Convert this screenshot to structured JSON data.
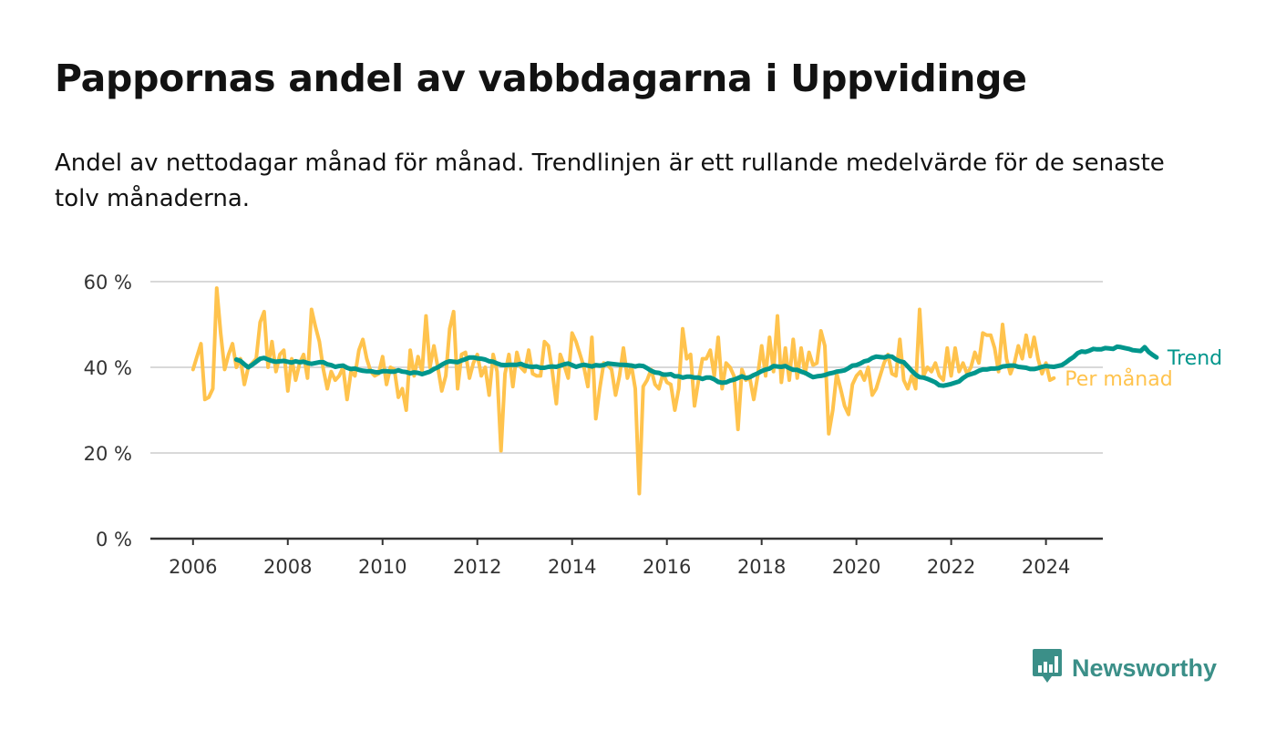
{
  "header": {
    "title": "Pappornas andel av vabbdagarna i Uppvidinge",
    "subtitle": "Andel av nettodagar månad för månad. Trendlinjen är ett rullande medelvärde för de senaste tolv månaderna."
  },
  "branding": {
    "name": "Newsworthy",
    "icon": "newsworthy-logo-icon",
    "color": "#3b8f88"
  },
  "chart_data": {
    "type": "line",
    "title": "Pappornas andel av vabbdagarna i Uppvidinge",
    "xlabel": "",
    "ylabel": "",
    "x_ticks": [
      "2006",
      "2008",
      "2010",
      "2012",
      "2014",
      "2016",
      "2018",
      "2020",
      "2022",
      "2024"
    ],
    "y_ticks": [
      "0 %",
      "20 %",
      "40 %",
      "60 %"
    ],
    "xlim": [
      2005.1,
      2025.2
    ],
    "ylim": [
      0,
      60
    ],
    "grid": "horizontal",
    "legend": "direct labels at right end of lines",
    "series": [
      {
        "name": "Per månad",
        "color": "#ffc34d",
        "start": "2006-01",
        "frequency": "monthly",
        "values": [
          39.5,
          42.5,
          45.5,
          32.5,
          33,
          35,
          58.5,
          48,
          39.5,
          43,
          45.5,
          40,
          42,
          36,
          40,
          41,
          42,
          50.5,
          53,
          40,
          46,
          39,
          43,
          44,
          34.5,
          42,
          37,
          41,
          43,
          37.5,
          53.5,
          49.5,
          46,
          39.5,
          35,
          39,
          37,
          38,
          40,
          32.5,
          39,
          38,
          44,
          46.5,
          42,
          39,
          38,
          38.5,
          42.5,
          36,
          40,
          39.5,
          33,
          35,
          30,
          44,
          38,
          42.5,
          39,
          52,
          40,
          45,
          40,
          34.5,
          38,
          49,
          53,
          35,
          43,
          43.5,
          37.5,
          41,
          43,
          38,
          40,
          33.5,
          43,
          39,
          20.5,
          38.5,
          43,
          35.5,
          43.5,
          40,
          39,
          44,
          38.5,
          38,
          38,
          46,
          45,
          39,
          31.5,
          43,
          40.5,
          37.5,
          48,
          46,
          43,
          40,
          35.5,
          47,
          28,
          35,
          41,
          40.5,
          39.5,
          33.5,
          38,
          44.5,
          37.5,
          40.5,
          35,
          10.5,
          35.5,
          37,
          39.5,
          36,
          35,
          38.5,
          36.5,
          36,
          30,
          35,
          49,
          42,
          43,
          31,
          37,
          42,
          42,
          44,
          38,
          47,
          35,
          41,
          40,
          38,
          25.5,
          39.5,
          37,
          37.5,
          32.5,
          38,
          45,
          38,
          47,
          39,
          52,
          36.5,
          44.5,
          37,
          46.5,
          37.5,
          44.5,
          38.5,
          43.5,
          40.5,
          41,
          48.5,
          45,
          24.5,
          30,
          38.5,
          35,
          31,
          29,
          36,
          38,
          39,
          37,
          40,
          33.5,
          35,
          38,
          41,
          43,
          38.5,
          38,
          46.5,
          37,
          35,
          38,
          35,
          53.5,
          38,
          40,
          39,
          41,
          38,
          37,
          44.5,
          38,
          44.5,
          39,
          41,
          38.5,
          40,
          43.5,
          41,
          48,
          47.5,
          47.5,
          44.5,
          39,
          50,
          42,
          38.5,
          41,
          45,
          42,
          47.5,
          42.5,
          47,
          42,
          38.5,
          41,
          37,
          37.5
        ]
      },
      {
        "name": "Trend",
        "color": "#00968c",
        "start": "2006-12",
        "frequency": "monthly",
        "values": [
          41.8,
          41.5,
          40.7,
          40,
          40.6,
          41.3,
          42,
          42.2,
          41.8,
          41.5,
          41.3,
          41.4,
          41.5,
          41.3,
          41.1,
          41.4,
          41.2,
          41.3,
          41,
          40.8,
          41,
          41.2,
          41.2,
          40.7,
          40.5,
          40.1,
          40.3,
          40.4,
          39.9,
          39.6,
          39.7,
          39.4,
          39.2,
          39.1,
          39.1,
          38.9,
          38.8,
          39.1,
          39.1,
          39,
          39,
          39.3,
          39,
          38.9,
          38.6,
          38.8,
          38.7,
          38.4,
          38.7,
          39,
          39.6,
          40,
          40.6,
          41.1,
          41.4,
          41.3,
          41.2,
          41.6,
          41.9,
          42.3,
          42.3,
          42.1,
          42,
          41.8,
          41.4,
          41.3,
          40.9,
          40.6,
          40.5,
          40.6,
          40.6,
          40.6,
          40.8,
          40.4,
          40.2,
          40.1,
          40.2,
          39.9,
          39.9,
          40.1,
          40.2,
          40.1,
          40.4,
          40.7,
          40.9,
          40.5,
          40.1,
          40.4,
          40.6,
          40.4,
          40.2,
          40.5,
          40.4,
          40.5,
          40.9,
          40.8,
          40.7,
          40.6,
          40.6,
          40.5,
          40.4,
          40.2,
          40.4,
          40.3,
          39.8,
          39.2,
          38.8,
          38.7,
          38.3,
          38.3,
          38.4,
          37.9,
          37.9,
          37.6,
          37.8,
          37.8,
          37.6,
          37.6,
          37.3,
          37.6,
          37.6,
          37.2,
          36.6,
          36.4,
          36.5,
          36.9,
          37.1,
          37.5,
          37.9,
          37.5,
          37.7,
          38.2,
          38.6,
          39.1,
          39.5,
          39.7,
          40.3,
          40.2,
          40.1,
          40.3,
          39.8,
          39.4,
          39.4,
          39,
          38.7,
          38.2,
          37.7,
          37.9,
          38,
          38.2,
          38.5,
          38.7,
          39,
          39.1,
          39.3,
          39.8,
          40.4,
          40.5,
          40.9,
          41.4,
          41.6,
          42.2,
          42.5,
          42.4,
          42.3,
          42.6,
          42.5,
          41.8,
          41.4,
          41.2,
          40.2,
          39.2,
          38.3,
          37.7,
          37.6,
          37.3,
          36.9,
          36.5,
          35.8,
          35.7,
          35.9,
          36.1,
          36.4,
          36.7,
          37.5,
          38.1,
          38.4,
          38.7,
          39.2,
          39.5,
          39.5,
          39.7,
          39.7,
          39.8,
          40.2,
          40.3,
          40.4,
          40.4,
          40.1,
          40,
          39.9,
          39.6,
          39.6,
          39.8,
          40.1,
          40.3,
          40.2,
          40.1,
          40.3,
          40.5,
          41.1,
          41.8,
          42.4,
          43.3,
          43.7,
          43.6,
          43.9,
          44.3,
          44.2,
          44.2,
          44.5,
          44.4,
          44.3,
          44.8,
          44.7,
          44.5,
          44.3,
          44,
          43.9,
          43.8,
          44.7,
          43.6,
          42.9,
          42.3
        ]
      }
    ]
  }
}
